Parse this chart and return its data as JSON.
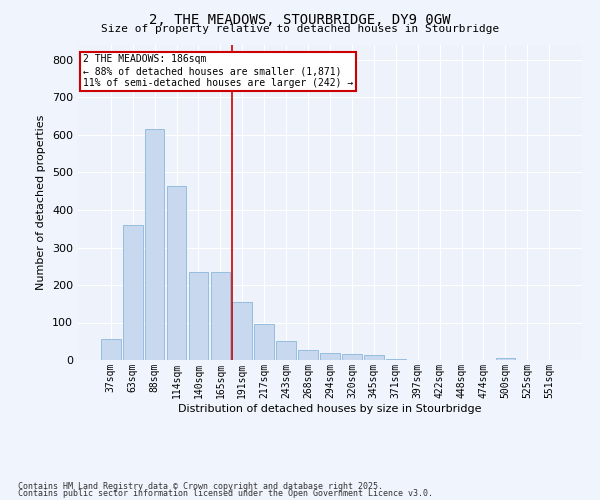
{
  "title_line1": "2, THE MEADOWS, STOURBRIDGE, DY9 0GW",
  "title_line2": "Size of property relative to detached houses in Stourbridge",
  "xlabel": "Distribution of detached houses by size in Stourbridge",
  "ylabel": "Number of detached properties",
  "categories": [
    "37sqm",
    "63sqm",
    "88sqm",
    "114sqm",
    "140sqm",
    "165sqm",
    "191sqm",
    "217sqm",
    "243sqm",
    "268sqm",
    "294sqm",
    "320sqm",
    "345sqm",
    "371sqm",
    "397sqm",
    "422sqm",
    "448sqm",
    "474sqm",
    "500sqm",
    "525sqm",
    "551sqm"
  ],
  "values": [
    55,
    360,
    615,
    465,
    235,
    235,
    155,
    95,
    50,
    27,
    20,
    17,
    13,
    3,
    1,
    1,
    0,
    0,
    6,
    1,
    0
  ],
  "bar_color": "#c8d8ee",
  "bar_edge_color": "#7aaed6",
  "bg_color": "#eef2fa",
  "grid_color": "#ffffff",
  "annotation_line_color": "#cc0000",
  "annotation_box_text": "2 THE MEADOWS: 186sqm\n← 88% of detached houses are smaller (1,871)\n11% of semi-detached houses are larger (242) →",
  "annotation_box_color": "#cc0000",
  "ylim": [
    0,
    840
  ],
  "yticks": [
    0,
    100,
    200,
    300,
    400,
    500,
    600,
    700,
    800
  ],
  "footer_line1": "Contains HM Land Registry data © Crown copyright and database right 2025.",
  "footer_line2": "Contains public sector information licensed under the Open Government Licence v3.0."
}
